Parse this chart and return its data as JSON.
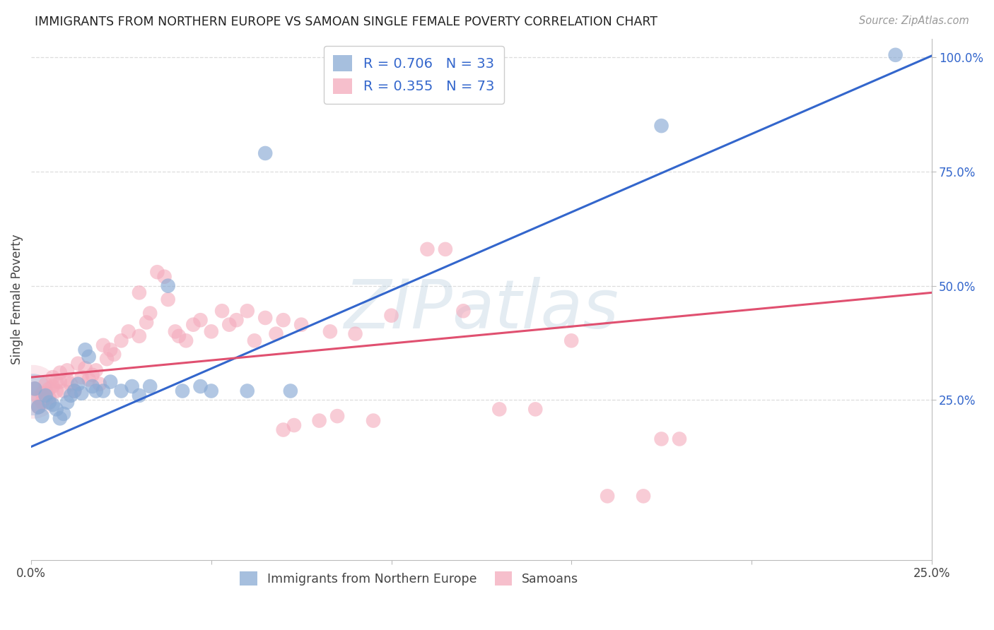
{
  "title": "IMMIGRANTS FROM NORTHERN EUROPE VS SAMOAN SINGLE FEMALE POVERTY CORRELATION CHART",
  "source": "Source: ZipAtlas.com",
  "xlabel_blue": "Immigrants from Northern Europe",
  "xlabel_pink": "Samoans",
  "ylabel": "Single Female Poverty",
  "xmin": 0.0,
  "xmax": 0.25,
  "ymin": -0.1,
  "ymax": 1.04,
  "blue_R": 0.706,
  "blue_N": 33,
  "pink_R": 0.355,
  "pink_N": 73,
  "blue_color": "#89AAD4",
  "pink_color": "#F4AABC",
  "blue_line_color": "#3366CC",
  "pink_line_color": "#E05070",
  "watermark": "ZIPatlas",
  "background_color": "#FFFFFF",
  "grid_color": "#DDDDDD",
  "blue_scatter": [
    [
      0.001,
      0.275
    ],
    [
      0.002,
      0.235
    ],
    [
      0.003,
      0.215
    ],
    [
      0.004,
      0.26
    ],
    [
      0.005,
      0.245
    ],
    [
      0.006,
      0.24
    ],
    [
      0.007,
      0.23
    ],
    [
      0.008,
      0.21
    ],
    [
      0.009,
      0.22
    ],
    [
      0.01,
      0.245
    ],
    [
      0.011,
      0.26
    ],
    [
      0.012,
      0.27
    ],
    [
      0.013,
      0.285
    ],
    [
      0.014,
      0.265
    ],
    [
      0.015,
      0.36
    ],
    [
      0.016,
      0.345
    ],
    [
      0.017,
      0.28
    ],
    [
      0.018,
      0.27
    ],
    [
      0.02,
      0.27
    ],
    [
      0.022,
      0.29
    ],
    [
      0.025,
      0.27
    ],
    [
      0.028,
      0.28
    ],
    [
      0.03,
      0.26
    ],
    [
      0.033,
      0.28
    ],
    [
      0.038,
      0.5
    ],
    [
      0.042,
      0.27
    ],
    [
      0.047,
      0.28
    ],
    [
      0.05,
      0.27
    ],
    [
      0.06,
      0.27
    ],
    [
      0.065,
      0.79
    ],
    [
      0.072,
      0.27
    ],
    [
      0.175,
      0.85
    ],
    [
      0.24,
      1.005
    ]
  ],
  "pink_scatter": [
    [
      0.001,
      0.275
    ],
    [
      0.002,
      0.255
    ],
    [
      0.002,
      0.235
    ],
    [
      0.003,
      0.265
    ],
    [
      0.003,
      0.245
    ],
    [
      0.004,
      0.285
    ],
    [
      0.004,
      0.265
    ],
    [
      0.005,
      0.275
    ],
    [
      0.005,
      0.255
    ],
    [
      0.006,
      0.3
    ],
    [
      0.006,
      0.28
    ],
    [
      0.007,
      0.29
    ],
    [
      0.007,
      0.27
    ],
    [
      0.008,
      0.31
    ],
    [
      0.008,
      0.29
    ],
    [
      0.009,
      0.27
    ],
    [
      0.01,
      0.315
    ],
    [
      0.01,
      0.295
    ],
    [
      0.011,
      0.285
    ],
    [
      0.012,
      0.27
    ],
    [
      0.013,
      0.33
    ],
    [
      0.014,
      0.3
    ],
    [
      0.015,
      0.32
    ],
    [
      0.016,
      0.295
    ],
    [
      0.017,
      0.305
    ],
    [
      0.018,
      0.315
    ],
    [
      0.019,
      0.285
    ],
    [
      0.02,
      0.37
    ],
    [
      0.021,
      0.34
    ],
    [
      0.022,
      0.36
    ],
    [
      0.023,
      0.35
    ],
    [
      0.025,
      0.38
    ],
    [
      0.027,
      0.4
    ],
    [
      0.03,
      0.39
    ],
    [
      0.03,
      0.485
    ],
    [
      0.032,
      0.42
    ],
    [
      0.033,
      0.44
    ],
    [
      0.035,
      0.53
    ],
    [
      0.037,
      0.52
    ],
    [
      0.038,
      0.47
    ],
    [
      0.04,
      0.4
    ],
    [
      0.041,
      0.39
    ],
    [
      0.043,
      0.38
    ],
    [
      0.045,
      0.415
    ],
    [
      0.047,
      0.425
    ],
    [
      0.05,
      0.4
    ],
    [
      0.053,
      0.445
    ],
    [
      0.055,
      0.415
    ],
    [
      0.057,
      0.425
    ],
    [
      0.06,
      0.445
    ],
    [
      0.062,
      0.38
    ],
    [
      0.065,
      0.43
    ],
    [
      0.068,
      0.395
    ],
    [
      0.07,
      0.425
    ],
    [
      0.07,
      0.185
    ],
    [
      0.073,
      0.195
    ],
    [
      0.075,
      0.415
    ],
    [
      0.08,
      0.205
    ],
    [
      0.083,
      0.4
    ],
    [
      0.085,
      0.215
    ],
    [
      0.09,
      0.395
    ],
    [
      0.095,
      0.205
    ],
    [
      0.1,
      0.435
    ],
    [
      0.11,
      0.58
    ],
    [
      0.115,
      0.58
    ],
    [
      0.12,
      0.445
    ],
    [
      0.13,
      0.23
    ],
    [
      0.14,
      0.23
    ],
    [
      0.15,
      0.38
    ],
    [
      0.16,
      0.04
    ],
    [
      0.17,
      0.04
    ],
    [
      0.175,
      0.165
    ],
    [
      0.18,
      0.165
    ]
  ],
  "blue_line_intercept": 0.148,
  "blue_line_slope": 3.42,
  "pink_line_intercept": 0.3,
  "pink_line_slope": 0.74
}
